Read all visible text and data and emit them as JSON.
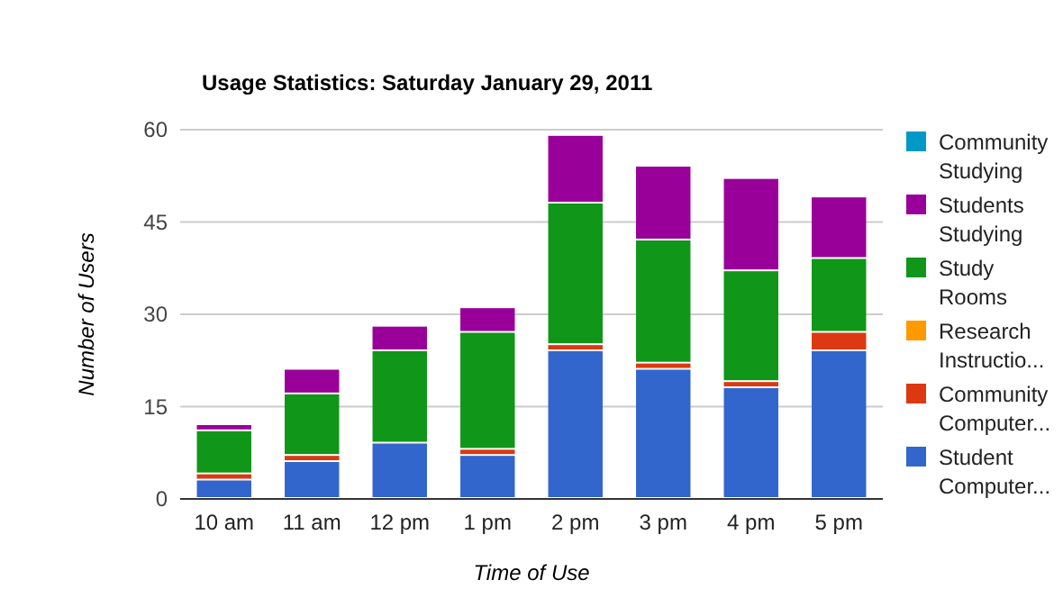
{
  "chart_data": {
    "type": "bar",
    "title": "Usage Statistics: Saturday January 29, 2011",
    "xlabel": "Time of Use",
    "ylabel": "Number of Users",
    "categories": [
      "10 am",
      "11 am",
      "12 pm",
      "1 pm",
      "2 pm",
      "3 pm",
      "4 pm",
      "5 pm"
    ],
    "stacked": true,
    "series": [
      {
        "name": "Student Computer...",
        "color": "#3366cc",
        "values": [
          3,
          6,
          9,
          7,
          24,
          21,
          18,
          24
        ]
      },
      {
        "name": "Community Computer...",
        "color": "#dc3912",
        "values": [
          1,
          1,
          0,
          1,
          1,
          1,
          1,
          3
        ]
      },
      {
        "name": "Research Instructio...",
        "color": "#ff9900",
        "values": [
          0,
          0,
          0,
          0,
          0,
          0,
          0,
          0
        ]
      },
      {
        "name": "Study Rooms",
        "color": "#109618",
        "values": [
          7,
          10,
          15,
          19,
          23,
          20,
          18,
          12
        ]
      },
      {
        "name": "Students Studying",
        "color": "#990099",
        "values": [
          1,
          4,
          4,
          4,
          11,
          12,
          15,
          10
        ]
      },
      {
        "name": "Community Studying",
        "color": "#0099c6",
        "values": [
          0,
          0,
          0,
          0,
          0,
          0,
          0,
          0
        ]
      }
    ],
    "ylim": [
      0,
      60
    ],
    "yticks": [
      0,
      15,
      30,
      45,
      60
    ],
    "grid": "y",
    "legend": "right"
  }
}
